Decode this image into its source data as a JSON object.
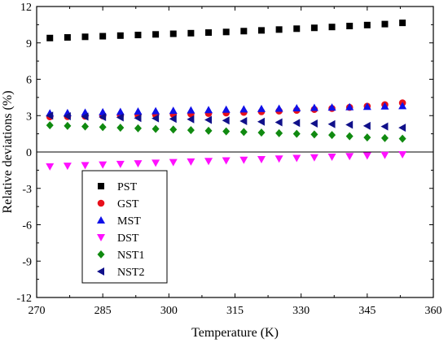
{
  "chart_data": {
    "type": "scatter",
    "xlabel": "Temperature (K)",
    "ylabel": "Relative deviations (%)",
    "xlim": [
      270,
      360
    ],
    "ylim": [
      -12,
      12
    ],
    "xticks": [
      "270",
      "285",
      "300",
      "315",
      "330",
      "345",
      "360"
    ],
    "yticks": [
      "12",
      "9",
      "6",
      "3",
      "0",
      "-3",
      "-6",
      "-9",
      "-12"
    ],
    "zero_line": true,
    "grid": false,
    "legend_position": "lower-left",
    "series": [
      {
        "name": "PST",
        "marker": "square",
        "color": "#000000",
        "x": [
          273,
          277,
          281,
          285,
          289,
          293,
          297,
          301,
          305,
          309,
          313,
          317,
          321,
          325,
          329,
          333,
          337,
          341,
          345,
          349,
          353
        ],
        "y": [
          9.4,
          9.45,
          9.5,
          9.55,
          9.6,
          9.65,
          9.7,
          9.75,
          9.8,
          9.85,
          9.9,
          9.97,
          10.03,
          10.1,
          10.17,
          10.24,
          10.31,
          10.39,
          10.47,
          10.55,
          10.65
        ]
      },
      {
        "name": "GST",
        "marker": "circle",
        "color": "#e8101b",
        "x": [
          273,
          277,
          281,
          285,
          289,
          293,
          297,
          301,
          305,
          309,
          313,
          317,
          321,
          325,
          329,
          333,
          337,
          341,
          345,
          349,
          353
        ],
        "y": [
          2.9,
          2.92,
          2.95,
          2.98,
          3.01,
          3.04,
          3.07,
          3.1,
          3.14,
          3.18,
          3.22,
          3.27,
          3.32,
          3.38,
          3.44,
          3.51,
          3.59,
          3.68,
          3.78,
          3.9,
          4.05
        ]
      },
      {
        "name": "MST",
        "marker": "triangle-up",
        "color": "#1010e8",
        "x": [
          273,
          277,
          281,
          285,
          289,
          293,
          297,
          301,
          305,
          309,
          313,
          317,
          321,
          325,
          329,
          333,
          337,
          341,
          345,
          349,
          353
        ],
        "y": [
          3.2,
          3.23,
          3.26,
          3.29,
          3.32,
          3.35,
          3.38,
          3.41,
          3.44,
          3.47,
          3.5,
          3.53,
          3.56,
          3.59,
          3.62,
          3.65,
          3.68,
          3.71,
          3.74,
          3.77,
          3.8
        ]
      },
      {
        "name": "DST",
        "marker": "triangle-down",
        "color": "#ff10ff",
        "x": [
          273,
          277,
          281,
          285,
          289,
          293,
          297,
          301,
          305,
          309,
          313,
          317,
          321,
          325,
          329,
          333,
          337,
          341,
          345,
          349,
          353
        ],
        "y": [
          -1.2,
          -1.15,
          -1.1,
          -1.05,
          -1.0,
          -0.95,
          -0.9,
          -0.85,
          -0.8,
          -0.75,
          -0.7,
          -0.65,
          -0.6,
          -0.55,
          -0.5,
          -0.45,
          -0.4,
          -0.35,
          -0.3,
          -0.25,
          -0.2
        ]
      },
      {
        "name": "NST1",
        "marker": "diamond",
        "color": "#108a10",
        "x": [
          273,
          277,
          281,
          285,
          289,
          293,
          297,
          301,
          305,
          309,
          313,
          317,
          321,
          325,
          329,
          333,
          337,
          341,
          345,
          349,
          353
        ],
        "y": [
          2.2,
          2.15,
          2.1,
          2.05,
          2.0,
          1.95,
          1.9,
          1.85,
          1.8,
          1.75,
          1.7,
          1.65,
          1.6,
          1.55,
          1.5,
          1.45,
          1.4,
          1.3,
          1.2,
          1.15,
          1.1
        ]
      },
      {
        "name": "NST2",
        "marker": "triangle-left",
        "color": "#10108a",
        "x": [
          273,
          277,
          281,
          285,
          289,
          293,
          297,
          301,
          305,
          309,
          313,
          317,
          321,
          325,
          329,
          333,
          337,
          341,
          345,
          349,
          353
        ],
        "y": [
          3.0,
          2.95,
          2.92,
          2.88,
          2.85,
          2.8,
          2.77,
          2.73,
          2.7,
          2.65,
          2.6,
          2.55,
          2.5,
          2.45,
          2.4,
          2.35,
          2.3,
          2.25,
          2.15,
          2.1,
          2.0
        ]
      }
    ]
  }
}
